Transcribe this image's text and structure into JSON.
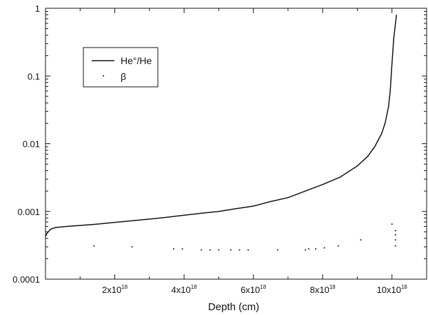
{
  "chart_data": {
    "type": "line",
    "title": "",
    "xlabel": "Depth (cm)",
    "ylabel": "",
    "y_scale": "log",
    "xlim": [
      0,
      1.1e+19
    ],
    "ylim": [
      0.0001,
      1
    ],
    "grid": false,
    "legend_placement": "upper-left",
    "x_ticks": [
      {
        "value": 2e+18,
        "base": "2x10",
        "exp": "18"
      },
      {
        "value": 4e+18,
        "base": "4x10",
        "exp": "18"
      },
      {
        "value": 6e+18,
        "base": "6x10",
        "exp": "18"
      },
      {
        "value": 8e+18,
        "base": "8x10",
        "exp": "18"
      },
      {
        "value": 1e+19,
        "base": "10x10",
        "exp": "18"
      }
    ],
    "y_ticks": [
      {
        "value": 0.0001,
        "label": "0.0001"
      },
      {
        "value": 0.001,
        "label": "0.001"
      },
      {
        "value": 0.01,
        "label": "0.01"
      },
      {
        "value": 0.1,
        "label": "0.1"
      },
      {
        "value": 1,
        "label": "1"
      }
    ],
    "series": [
      {
        "name": "He°/He",
        "style": "line",
        "color": "#111111",
        "x": [
          0,
          5e+16,
          1.5e+17,
          3e+17,
          6e+17,
          1e+18,
          1.5e+18,
          2e+18,
          2.5e+18,
          3e+18,
          3.5e+18,
          4e+18,
          4.5e+18,
          5e+18,
          5.5e+18,
          6e+18,
          6.5e+18,
          7e+18,
          7.5e+18,
          8e+18,
          8.5e+18,
          9e+18,
          9.3e+18,
          9.5e+18,
          9.7e+18,
          9.8e+18,
          9.9e+18,
          9.95e+18,
          1e+19,
          1.005e+19,
          1.01e+19,
          1.013e+19
        ],
        "y": [
          0.00043,
          0.00048,
          0.00055,
          0.00058,
          0.0006,
          0.00062,
          0.00065,
          0.00069,
          0.00073,
          0.00077,
          0.00082,
          0.00088,
          0.00094,
          0.001,
          0.0011,
          0.0012,
          0.0014,
          0.0016,
          0.002,
          0.0025,
          0.0032,
          0.0047,
          0.0065,
          0.009,
          0.014,
          0.02,
          0.035,
          0.06,
          0.15,
          0.35,
          0.6,
          0.8
        ]
      },
      {
        "name": "β",
        "style": "points",
        "color": "#111111",
        "x": [
          1.4e+18,
          2.5e+18,
          3.7e+18,
          3.95e+18,
          4.5e+18,
          4.75e+18,
          5e+18,
          5.35e+18,
          5.6e+18,
          5.85e+18,
          6.7e+18,
          7.5e+18,
          7.6e+18,
          7.8e+18,
          8.05e+18,
          8.45e+18,
          9.1e+18,
          1e+19,
          1.01e+19,
          1.01e+19,
          1.01e+19,
          1.01e+19
        ],
        "y": [
          0.00031,
          0.0003,
          0.00028,
          0.00028,
          0.00027,
          0.00027,
          0.00027,
          0.00027,
          0.00027,
          0.00027,
          0.00027,
          0.00027,
          0.00028,
          0.00028,
          0.00029,
          0.00031,
          0.00038,
          0.00065,
          0.00052,
          0.00045,
          0.00038,
          0.00031
        ]
      }
    ]
  }
}
